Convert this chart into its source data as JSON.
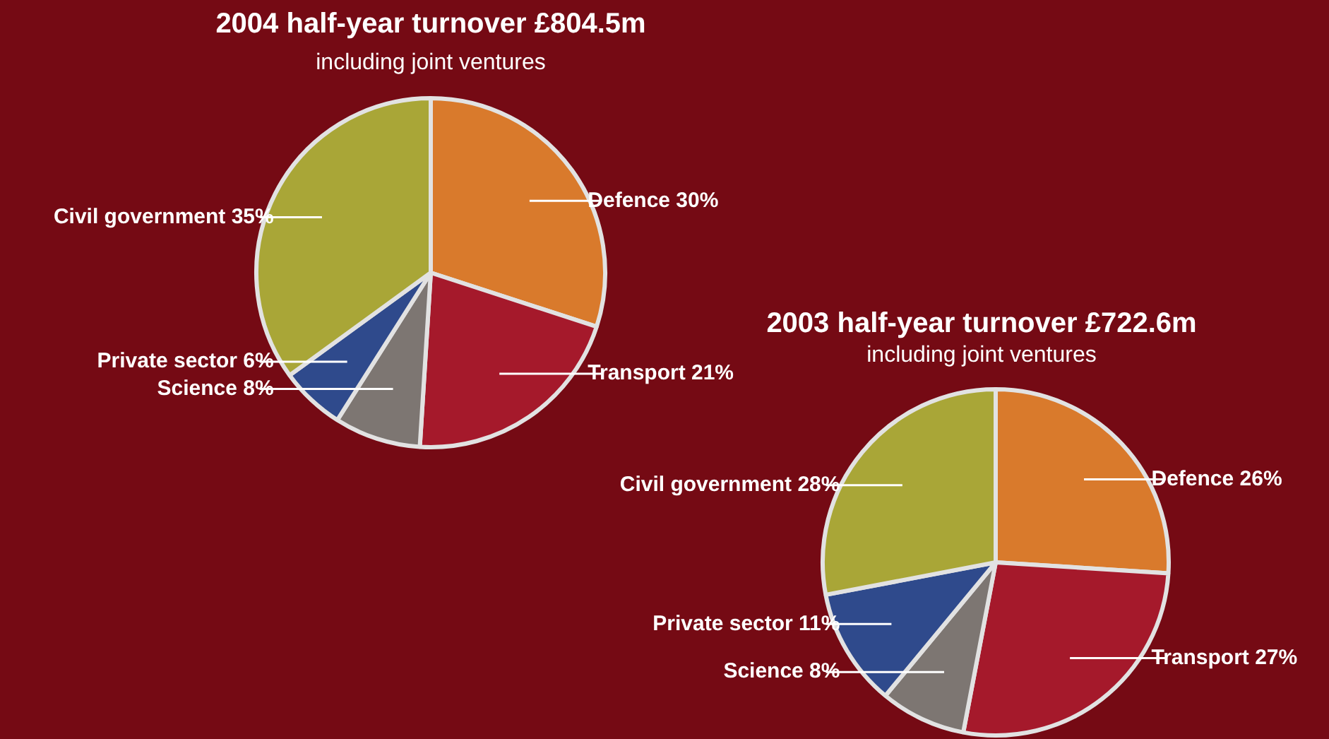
{
  "chart_data": [
    {
      "type": "pie",
      "title": "2004 half-year turnover £804.5m",
      "subtitle": "including joint ventures",
      "categories": [
        "Defence",
        "Transport",
        "Science",
        "Private sector",
        "Civil government"
      ],
      "values": [
        30,
        21,
        8,
        6,
        35
      ],
      "value_labels": [
        "30%",
        "21%",
        "8%",
        "6%",
        "35%"
      ],
      "colors": [
        "#d97a2c",
        "#a5192b",
        "#7d7672",
        "#2f4a8c",
        "#a9a637"
      ]
    },
    {
      "type": "pie",
      "title": "2003 half-year turnover £722.6m",
      "subtitle": "including joint ventures",
      "categories": [
        "Defence",
        "Transport",
        "Science",
        "Private sector",
        "Civil government"
      ],
      "values": [
        26,
        27,
        8,
        11,
        28
      ],
      "value_labels": [
        "26%",
        "27%",
        "8%",
        "11%",
        "28%"
      ],
      "colors": [
        "#d97a2c",
        "#a5192b",
        "#7d7672",
        "#2f4a8c",
        "#a9a637"
      ]
    }
  ]
}
